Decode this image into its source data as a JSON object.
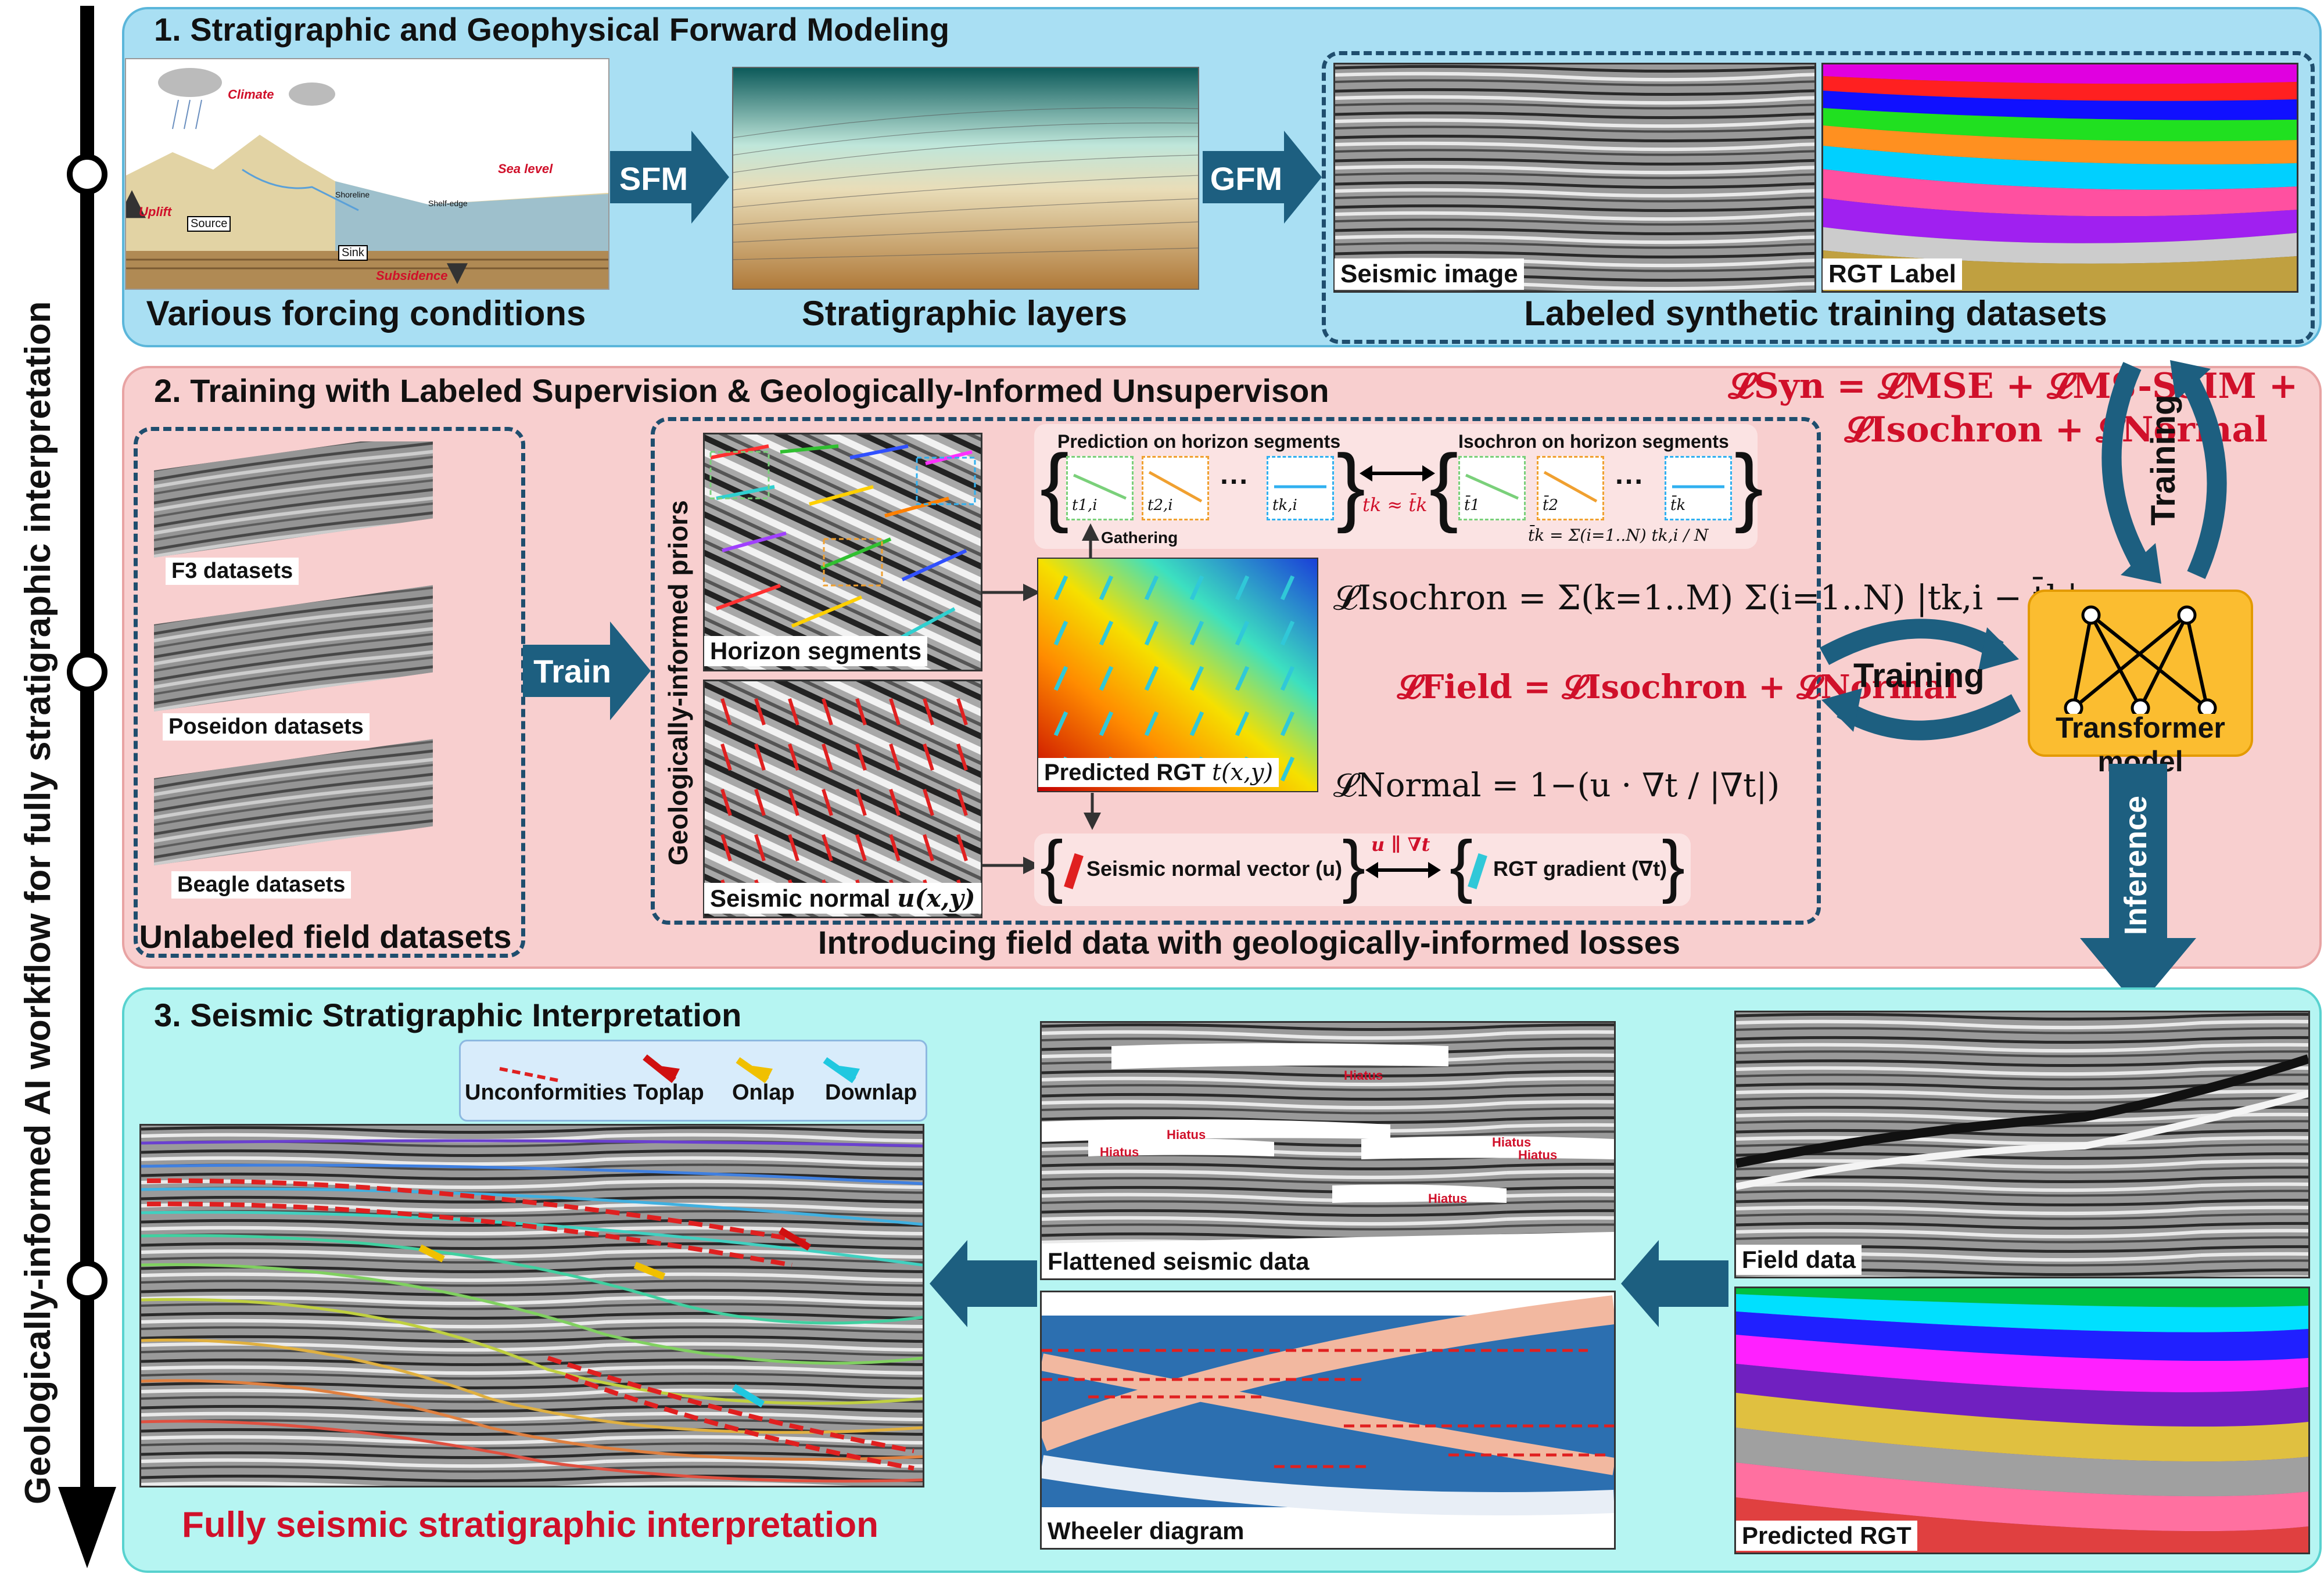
{
  "workflow_axis": {
    "label": "Geologically-informed AI workflow for  fully stratigraphic interpretation"
  },
  "section1": {
    "title": "1. Stratigraphic and Geophysical Forward Modeling",
    "forcing": {
      "caption": "Various forcing conditions",
      "labels": {
        "climate": "Climate",
        "sea_level": "Sea level",
        "uplift": "Uplift",
        "source": "Source",
        "sink": "Sink",
        "subsidence": "Subsidence",
        "shoreline": "Shoreline",
        "shelf_edge": "Shelf-edge"
      }
    },
    "sfm_label": "SFM",
    "layers_caption": "Stratigraphic layers",
    "gfm_label": "GFM",
    "seismic_label": "Seismic image",
    "rgt_label": "RGT Label",
    "datasets_caption": "Labeled synthetic training datasets"
  },
  "section2": {
    "title": "2. Training with Labeled Supervision & Geologically-Informed Unsupervison",
    "field_datasets": [
      "F3 datasets",
      "Poseidon datasets",
      "Beagle datasets"
    ],
    "field_caption": "Unlabeled field datasets",
    "train_label": "Train",
    "priors_label": "Geologically-informed priors",
    "horizon_label": "Horizon segments",
    "normal_label": "Seismic normal ",
    "normal_symbol": "u(x,y)",
    "prediction_title": "Prediction on horizon segments",
    "isochron_title": "Isochron on horizon segments",
    "gathering": "Gathering",
    "t_labels": [
      "t1,i",
      "t2,i",
      "tk,i"
    ],
    "tbar_labels": [
      "t̄1",
      "t̄2",
      "t̄k"
    ],
    "ellipsis": "···",
    "approx": "tk ≈ t̄k",
    "mean_def": "t̄k = Σ(i=1..N) tk,i / N",
    "predicted_rgt": "Predicted RGT ",
    "predicted_rgt_symbol": "t(x,y)",
    "normal_vector": "Seismic normal vector (u)",
    "parallel": "u ∥ ∇t",
    "rgt_gradient": "RGT gradient (∇t)",
    "loss_isochron": "𝓛Isochron = Σ(k=1..M) Σ(i=1..N) |tk,i − t̄k|",
    "loss_field": "𝓛Field  =  𝓛Isochron + 𝓛Normal",
    "loss_normal": "𝓛Normal = 1−(u · ∇t / |∇t|)",
    "loss_syn_line1": "𝓛Syn = 𝓛MSE + 𝓛MS-SSIM +",
    "loss_syn_line2": "𝓛Isochron + 𝓛Normal",
    "training_label_h": "Training",
    "training_label_v": "Training",
    "transformer_label": "Transformer model",
    "inference_label": "Inference",
    "caption": "Introducing field data with geologically-informed losses"
  },
  "section3": {
    "title": "3. Seismic Stratigraphic Interpretation",
    "legend": [
      "Unconformities",
      "Toplap",
      "Onlap",
      "Downlap"
    ],
    "final_caption": "Fully seismic stratigraphic interpretation",
    "flattened_label": "Flattened seismic data",
    "hiatus": "Hiatus",
    "wheeler_label": "Wheeler diagram",
    "field_data_label": "Field data",
    "predicted_rgt_label": "Predicted RGT"
  },
  "colors": {
    "panel1": "#a9dff3",
    "panel2": "#f8cfcf",
    "panel3": "#b6f5f2",
    "arrow": "#1d5f80",
    "loss_red": "#d0102a",
    "transformer": "#fbbd30"
  }
}
